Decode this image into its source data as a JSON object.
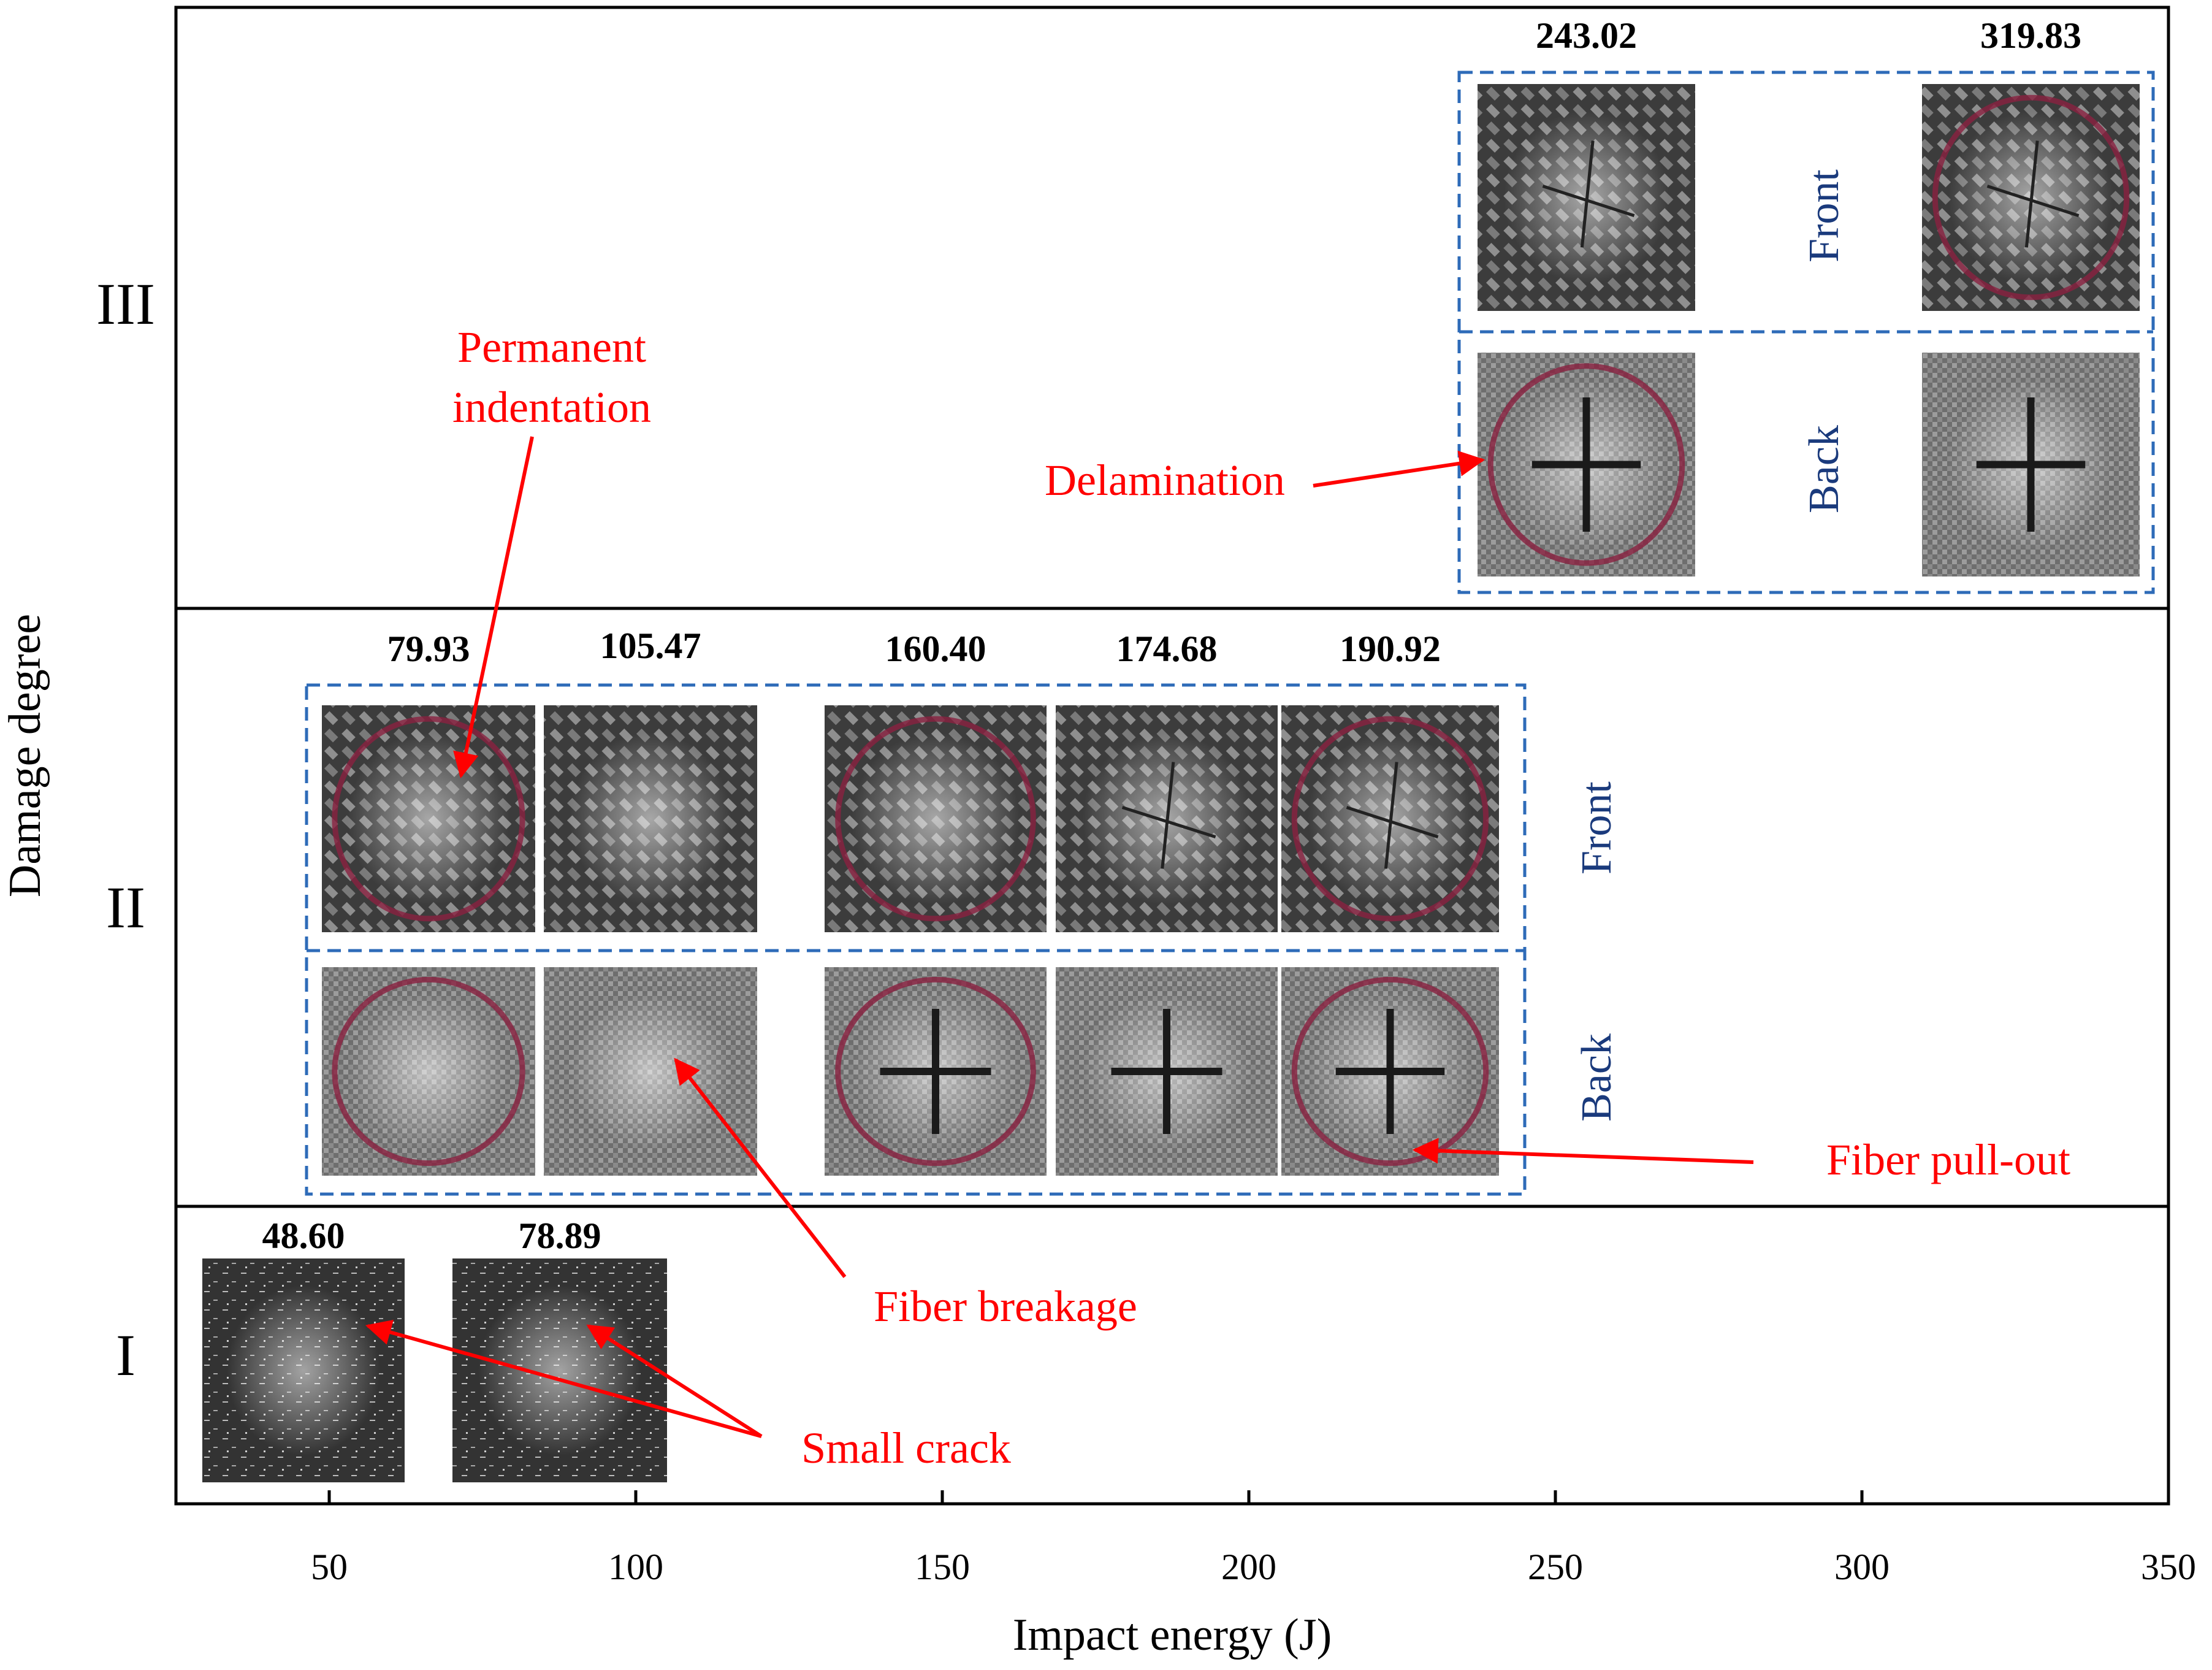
{
  "chart_data": {
    "type": "scatter",
    "title": "",
    "xlabel": "Impact energy (J)",
    "ylabel": "Damage degree",
    "xlim": [
      25,
      350
    ],
    "x_ticks": [
      50,
      100,
      150,
      200,
      250,
      300,
      350
    ],
    "x_tick_labels": [
      "50",
      "100",
      "150",
      "200",
      "250",
      "300",
      "350"
    ],
    "levels": [
      "I",
      "II",
      "III"
    ],
    "grid": false,
    "series": [
      {
        "name": "Level I",
        "level": "I",
        "energies": [
          "48.60",
          "78.89"
        ],
        "values": [
          48.6,
          78.89
        ]
      },
      {
        "name": "Level II",
        "level": "II",
        "energies": [
          "79.93",
          "105.47",
          "160.40",
          "174.68",
          "190.92"
        ],
        "values": [
          79.93,
          105.47,
          160.4,
          174.68,
          190.92
        ]
      },
      {
        "name": "Level III",
        "level": "III",
        "energies": [
          "243.02",
          "319.83"
        ],
        "values": [
          243.02,
          319.83
        ]
      }
    ],
    "panel_labels": {
      "front": "Front",
      "back": "Back"
    },
    "annotations": {
      "small_crack": "Small crack",
      "fiber_breakage": "Fiber breakage",
      "fiber_pullout": "Fiber pull-out",
      "permanent_indentation": [
        "Permanent",
        "indentation"
      ],
      "delamination": "Delamination"
    }
  },
  "colors": {
    "axis": "#000000",
    "annotation": "#ff0000",
    "panel_border": "#2e6bb8",
    "panel_text": "#1a3a7c",
    "specimen_dark": "#4a4a4a",
    "specimen_light": "#b8b8b8",
    "impact_mark": "#8a2040"
  }
}
